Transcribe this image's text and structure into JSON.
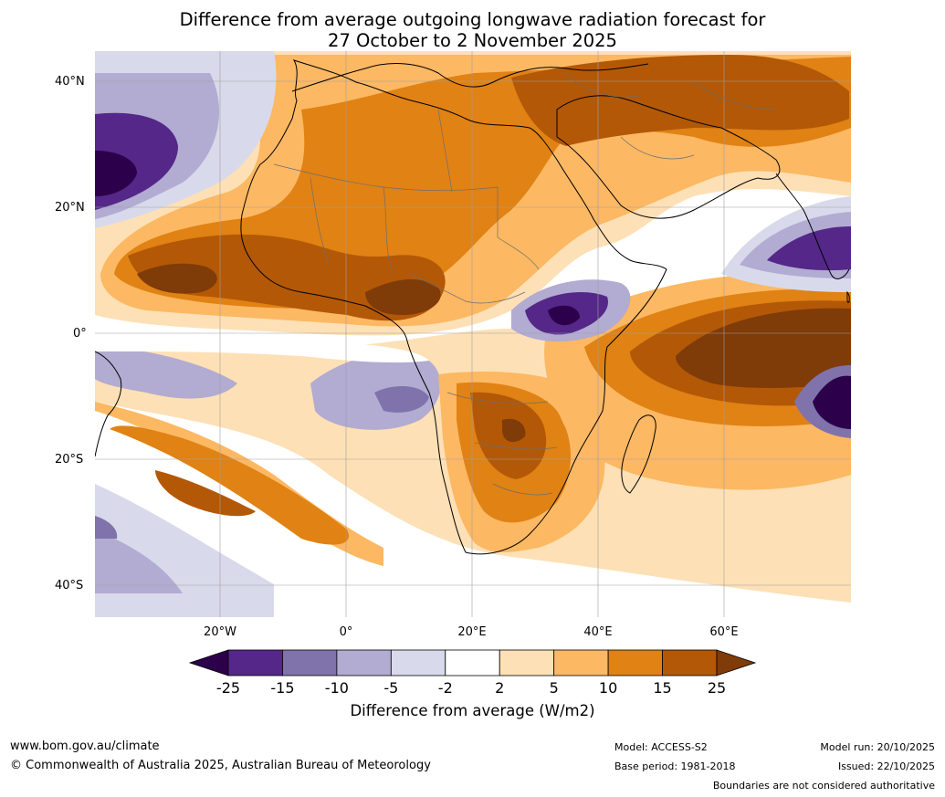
{
  "title": {
    "line1": "Difference from average outgoing longwave radiation forecast for",
    "line2": "27 October to 2 November 2025"
  },
  "axes": {
    "y_labels": [
      "40°N",
      "20°N",
      "0°",
      "20°S",
      "40°S"
    ],
    "x_labels": [
      "20°W",
      "0°",
      "20°E",
      "40°E",
      "60°E"
    ]
  },
  "colorbar": {
    "ticks": [
      "-25",
      "-15",
      "-10",
      "-5",
      "-2",
      "2",
      "5",
      "10",
      "15",
      "25"
    ],
    "colors": [
      "#2d004b",
      "#542788",
      "#8073ac",
      "#b2abd2",
      "#d8daeb",
      "#ffffff",
      "#fee0b6",
      "#fdb863",
      "#e08214",
      "#b35806",
      "#7f3b08"
    ],
    "title": "Difference from average (W/m2)"
  },
  "footer": {
    "website": "www.bom.gov.au/climate",
    "copyright": "© Commonwealth of Australia 2025, Australian Bureau of Meteorology",
    "model": "Model: ACCESS-S2",
    "base_period": "Base period: 1981-2018",
    "model_run": "Model run: 20/10/2025",
    "issued": "Issued: 22/10/2025",
    "disclaimer": "Boundaries are not considered authoritative"
  }
}
